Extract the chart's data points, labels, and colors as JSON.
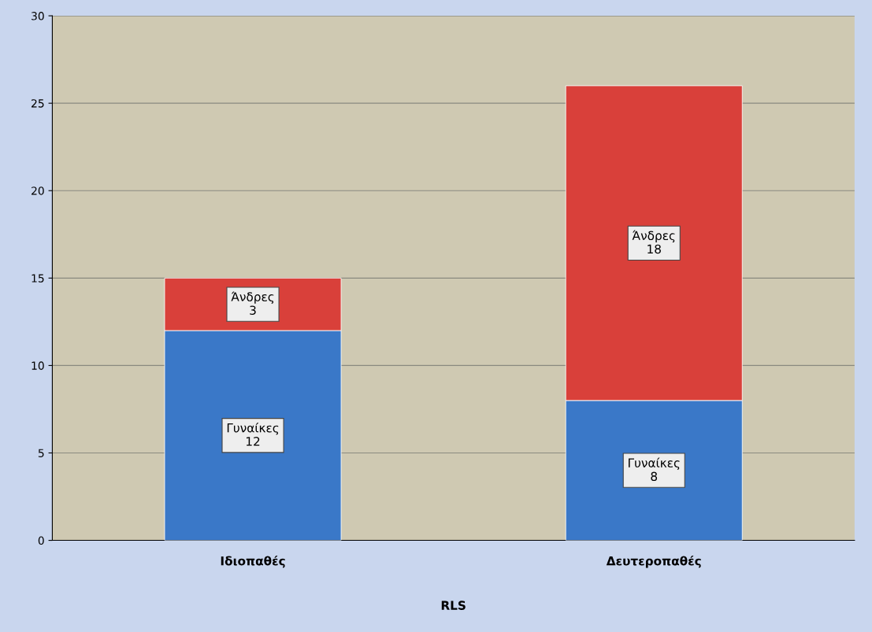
{
  "chart_data": {
    "type": "bar",
    "stacked": true,
    "categories": [
      "Ιδιοπαθές",
      "Δευτεροπαθές"
    ],
    "xlabel": "RLS",
    "series": [
      {
        "name": "Γυναίκες",
        "color": "#3a78c8",
        "values": [
          12,
          8
        ]
      },
      {
        "name": "Άνδρες",
        "color": "#d9403a",
        "values": [
          3,
          18
        ]
      }
    ],
    "ylim": [
      0,
      30
    ],
    "yticks": [
      0,
      5,
      10,
      15,
      20,
      25,
      30
    ],
    "grid": "y",
    "data_labels": true,
    "legend": false
  }
}
